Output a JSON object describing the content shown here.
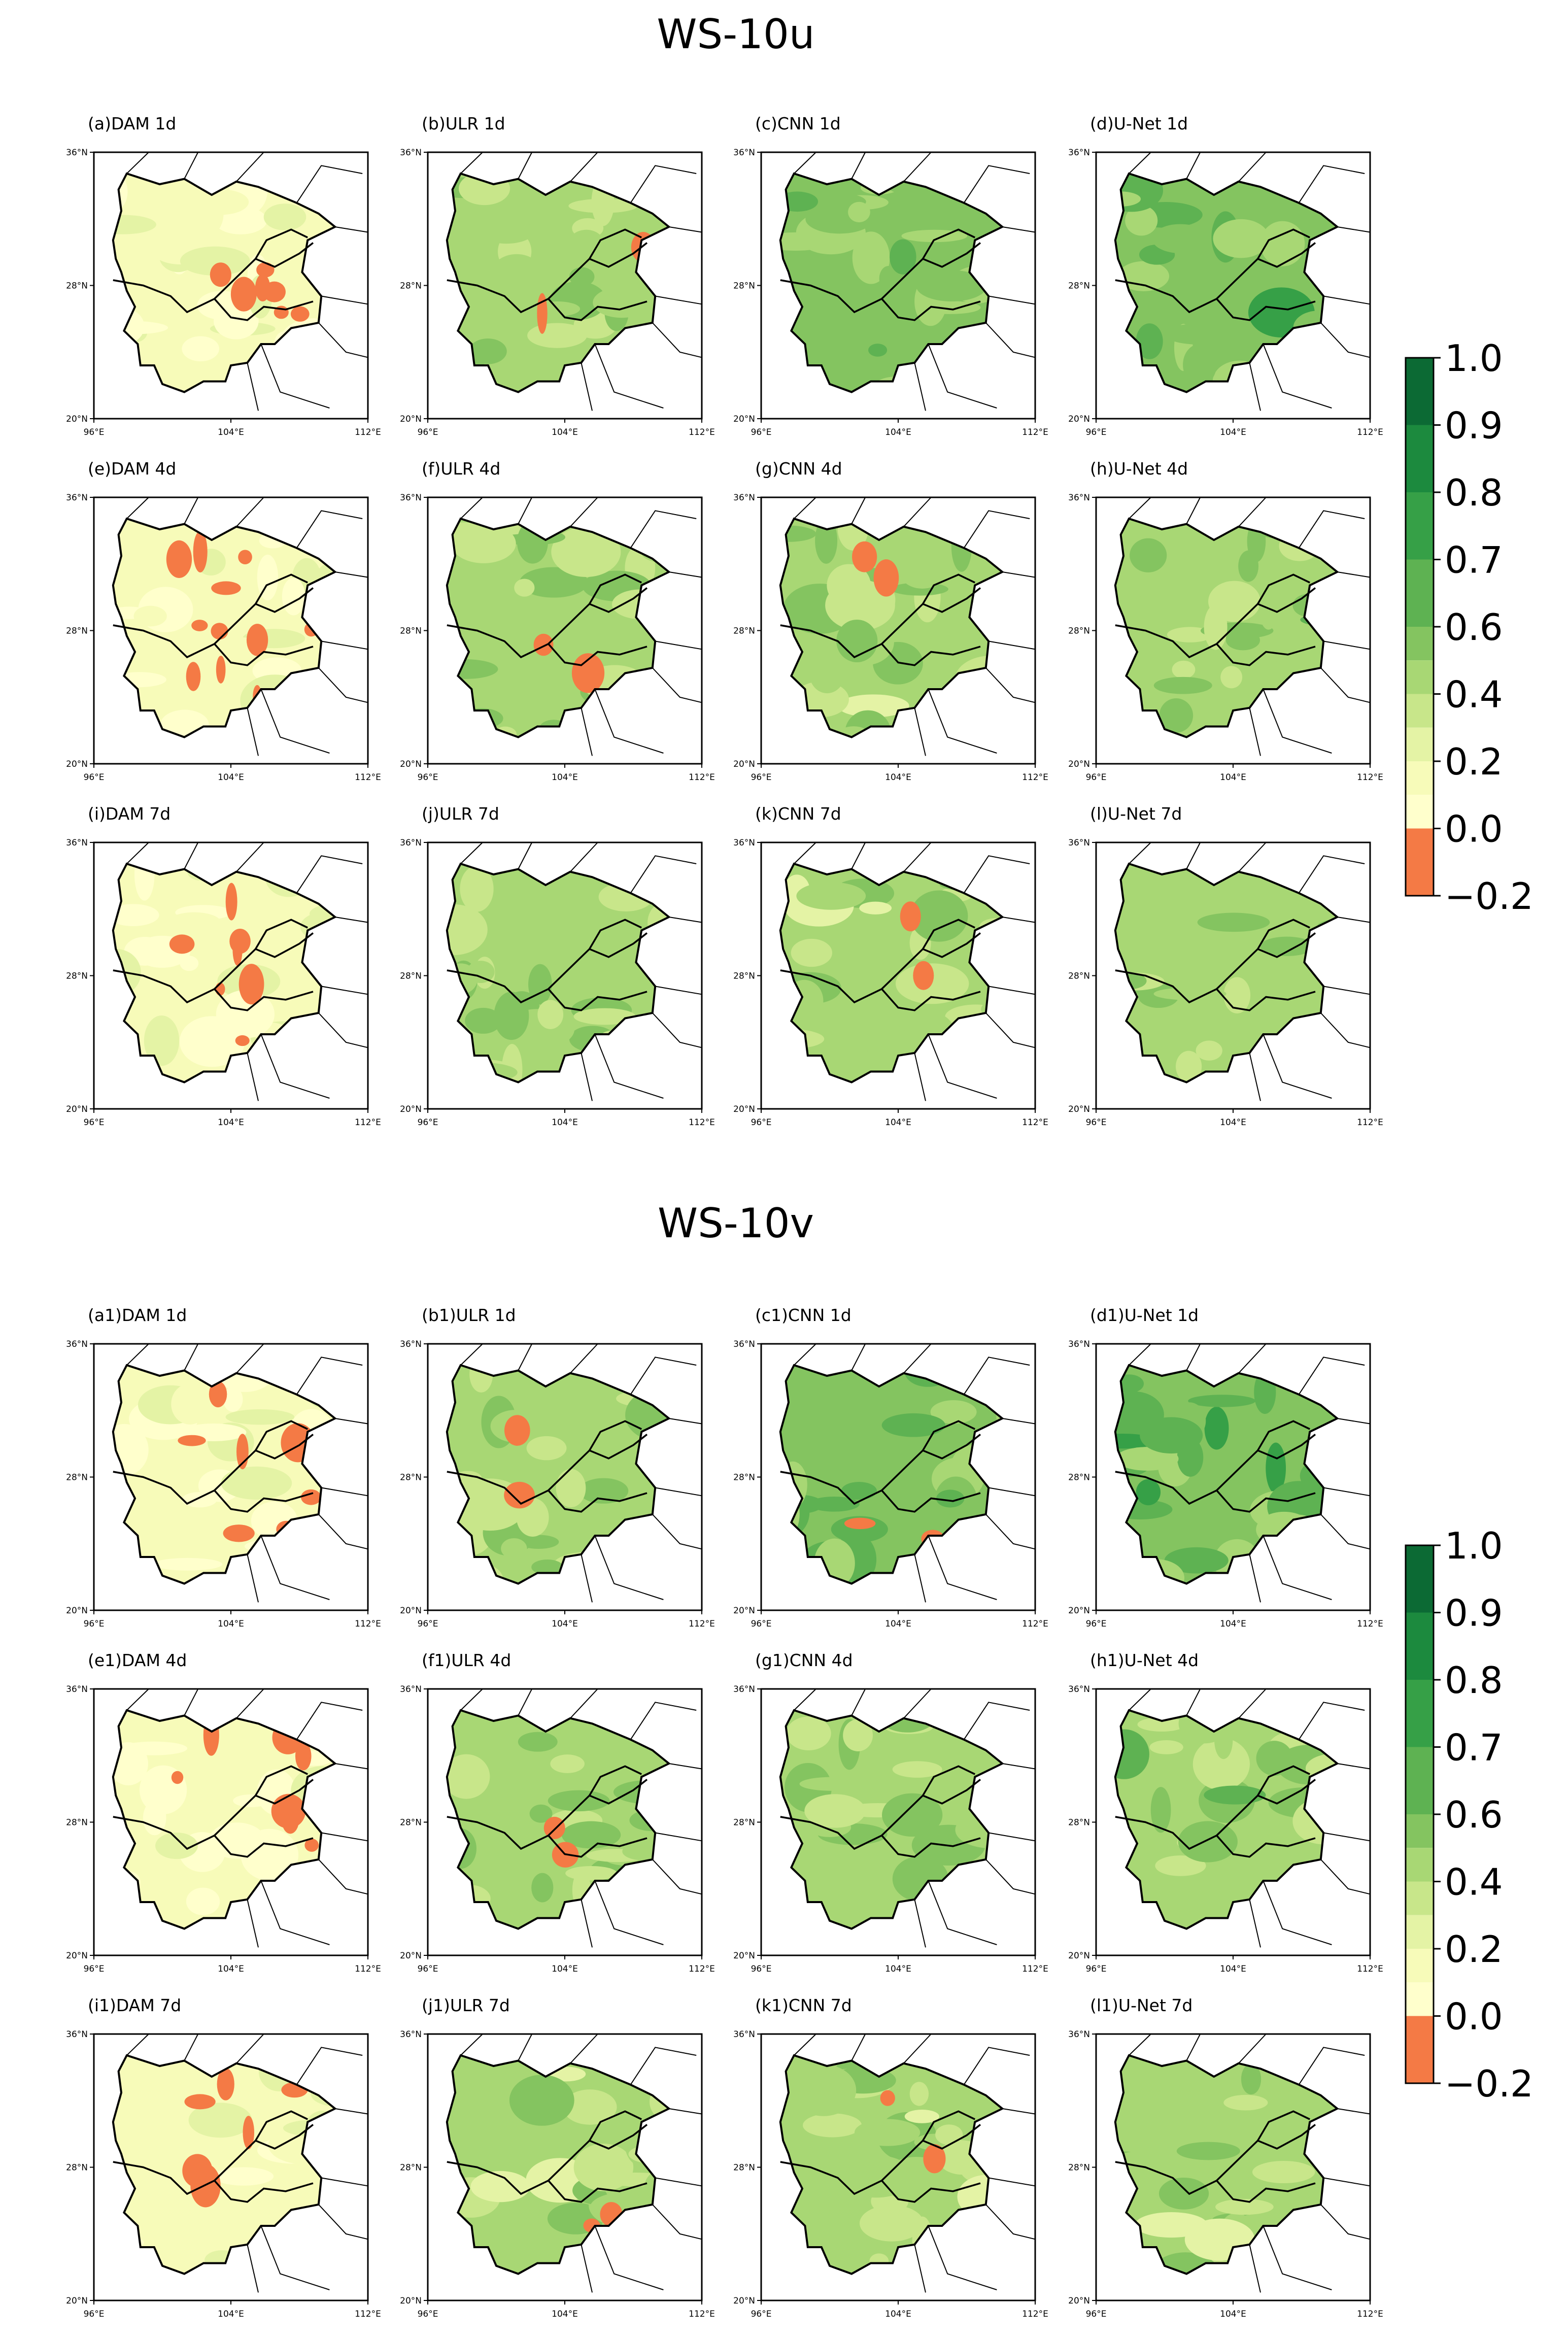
{
  "figure": {
    "type": "spatial-correlation-maps",
    "region": "Southwest China",
    "colorbar": {
      "boundaries": [
        -0.2,
        0.0,
        0.1,
        0.2,
        0.3,
        0.4,
        0.5,
        0.6,
        0.7,
        0.8,
        0.9,
        1.0
      ],
      "tick_labels": [
        "1.0",
        "0.9",
        "0.8",
        "0.7",
        "0.6",
        "0.4",
        "0.2",
        "0.0",
        "−0.2"
      ],
      "colors": [
        "#f47a45",
        "#ffffcc",
        "#f7fbb9",
        "#e4f3a5",
        "#c8e68a",
        "#a8d774",
        "#84c460",
        "#5eb252",
        "#36a047",
        "#1c8a3e",
        "#0c6a34"
      ]
    },
    "axes": {
      "lat_ticks": [
        "36°N",
        "28°N",
        "20°N"
      ],
      "lon_ticks": [
        "96°E",
        "104°E",
        "112°E"
      ]
    }
  },
  "chart_data": [
    {
      "type": "heatmap",
      "title": "WS-10u",
      "panels": [
        {
          "label": "(a)DAM 1d",
          "method": "DAM",
          "lead": "1d",
          "mean_level": 0.15,
          "negative_share": "moderate"
        },
        {
          "label": "(b)ULR 1d",
          "method": "ULR",
          "lead": "1d",
          "mean_level": 0.45,
          "negative_share": "small"
        },
        {
          "label": "(c)CNN 1d",
          "method": "CNN",
          "lead": "1d",
          "mean_level": 0.55,
          "negative_share": "none"
        },
        {
          "label": "(d)U-Net 1d",
          "method": "U-Net",
          "lead": "1d",
          "mean_level": 0.57,
          "negative_share": "none"
        },
        {
          "label": "(e)DAM 4d",
          "method": "DAM",
          "lead": "4d",
          "mean_level": 0.12,
          "negative_share": "large"
        },
        {
          "label": "(f)ULR 4d",
          "method": "ULR",
          "lead": "4d",
          "mean_level": 0.45,
          "negative_share": "small"
        },
        {
          "label": "(g)CNN 4d",
          "method": "CNN",
          "lead": "4d",
          "mean_level": 0.4,
          "negative_share": "small"
        },
        {
          "label": "(h)U-Net 4d",
          "method": "U-Net",
          "lead": "4d",
          "mean_level": 0.47,
          "negative_share": "none"
        },
        {
          "label": "(i)DAM 7d",
          "method": "DAM",
          "lead": "7d",
          "mean_level": 0.12,
          "negative_share": "moderate"
        },
        {
          "label": "(j)ULR 7d",
          "method": "ULR",
          "lead": "7d",
          "mean_level": 0.45,
          "negative_share": "none"
        },
        {
          "label": "(k)CNN 7d",
          "method": "CNN",
          "lead": "7d",
          "mean_level": 0.42,
          "negative_share": "small"
        },
        {
          "label": "(l)U-Net 7d",
          "method": "U-Net",
          "lead": "7d",
          "mean_level": 0.45,
          "negative_share": "none"
        }
      ]
    },
    {
      "type": "heatmap",
      "title": "WS-10v",
      "panels": [
        {
          "label": "(a1)DAM 1d",
          "method": "DAM",
          "lead": "1d",
          "mean_level": 0.12,
          "negative_share": "moderate"
        },
        {
          "label": "(b1)ULR 1d",
          "method": "ULR",
          "lead": "1d",
          "mean_level": 0.45,
          "negative_share": "small"
        },
        {
          "label": "(c1)CNN 1d",
          "method": "CNN",
          "lead": "1d",
          "mean_level": 0.55,
          "negative_share": "small"
        },
        {
          "label": "(d1)U-Net 1d",
          "method": "U-Net",
          "lead": "1d",
          "mean_level": 0.57,
          "negative_share": "none"
        },
        {
          "label": "(e1)DAM 4d",
          "method": "DAM",
          "lead": "4d",
          "mean_level": 0.1,
          "negative_share": "moderate"
        },
        {
          "label": "(f1)ULR 4d",
          "method": "ULR",
          "lead": "4d",
          "mean_level": 0.45,
          "negative_share": "small"
        },
        {
          "label": "(g1)CNN 4d",
          "method": "CNN",
          "lead": "4d",
          "mean_level": 0.45,
          "negative_share": "none"
        },
        {
          "label": "(h1)U-Net 4d",
          "method": "U-Net",
          "lead": "4d",
          "mean_level": 0.47,
          "negative_share": "none"
        },
        {
          "label": "(i1)DAM 7d",
          "method": "DAM",
          "lead": "7d",
          "mean_level": 0.1,
          "negative_share": "moderate"
        },
        {
          "label": "(j1)ULR 7d",
          "method": "ULR",
          "lead": "7d",
          "mean_level": 0.42,
          "negative_share": "small"
        },
        {
          "label": "(k1)CNN 7d",
          "method": "CNN",
          "lead": "7d",
          "mean_level": 0.4,
          "negative_share": "small"
        },
        {
          "label": "(l1)U-Net 7d",
          "method": "U-Net",
          "lead": "7d",
          "mean_level": 0.42,
          "negative_share": "none"
        }
      ]
    }
  ]
}
